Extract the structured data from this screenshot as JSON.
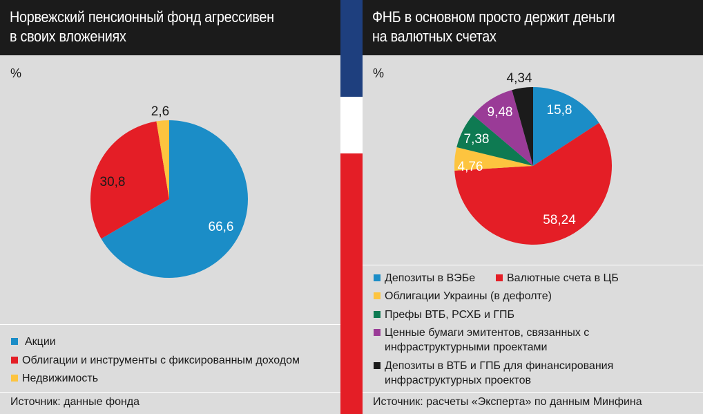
{
  "left": {
    "title_lines": [
      "Норвежский пенсионный фонд агрессивен",
      "в своих вложениях"
    ],
    "unit": "%",
    "source": "Источник: данные фонда"
  },
  "right": {
    "title_lines": [
      "ФНБ в основном просто держит деньги",
      "на валютных счетах"
    ],
    "unit": "%",
    "source": "Источник: расчеты «Эксперта» по данным Минфина"
  },
  "flag_colors": [
    "#1e3f7e",
    "#ffffff",
    "#e41e26"
  ],
  "chart_data": [
    {
      "type": "pie",
      "title": "Норвежский пенсионный фонд агрессивен в своих вложениях",
      "unit": "%",
      "start_angle_deg": 0,
      "slices": [
        {
          "label": "Акции",
          "value": 66.6,
          "display": "66,6",
          "color": "#1b8dc7"
        },
        {
          "label": "Облигации и инструменты с фиксированным доходом",
          "value": 30.8,
          "display": "30,8",
          "color": "#e41e26"
        },
        {
          "label": "Недвижимость",
          "value": 2.6,
          "display": "2,6",
          "color": "#fdc43f"
        }
      ]
    },
    {
      "type": "pie",
      "title": "ФНБ в основном просто держит деньги на валютных счетах",
      "unit": "%",
      "start_angle_deg": 0,
      "slices": [
        {
          "label": "Депозиты в ВЭБе",
          "value": 15.8,
          "display": "15,8",
          "color": "#1b8dc7"
        },
        {
          "label": "Валютные счета в ЦБ",
          "value": 58.24,
          "display": "58,24",
          "color": "#e41e26"
        },
        {
          "label": "Облигации Украины (в дефолте)",
          "value": 4.76,
          "display": "4,76",
          "color": "#fdc43f"
        },
        {
          "label": "Префы ВТБ, РСХБ и ГПБ",
          "value": 7.38,
          "display": "7,38",
          "color": "#0e7a52"
        },
        {
          "label": "Ценные бумаги эмитентов, связанных с инфраструктурными проектами",
          "value": 9.48,
          "display": "9,48",
          "color": "#9a3b97"
        },
        {
          "label": "Депозиты в ВТБ и ГПБ для финансирования инфраструктурных проектов",
          "value": 4.34,
          "display": "4,34",
          "color": "#1b1b1b"
        }
      ]
    }
  ]
}
